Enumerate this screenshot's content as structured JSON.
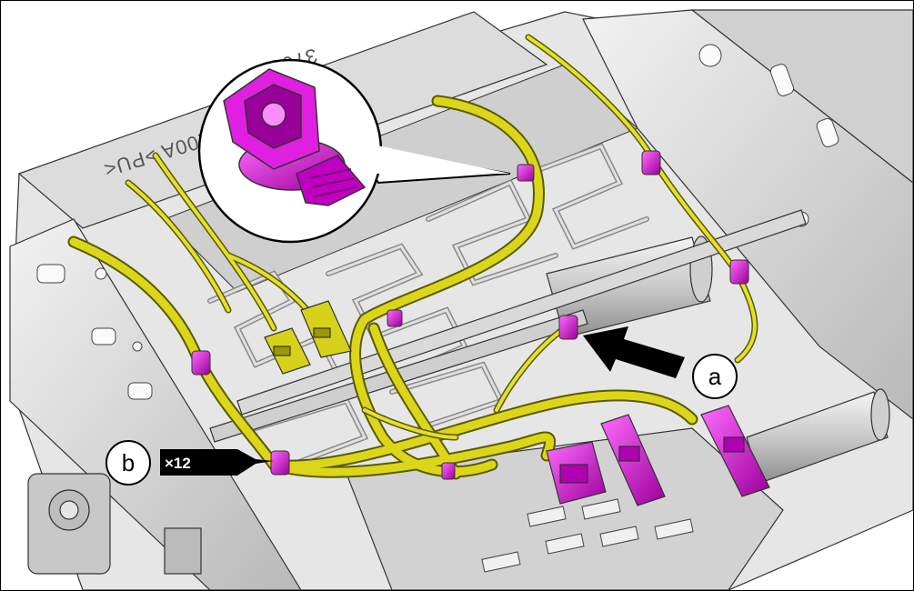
{
  "diagram": {
    "callouts": {
      "a": "a",
      "b": "b"
    },
    "quantity_label": "×12",
    "embossed_text": [
      "3706",
      "5100A >PU<"
    ],
    "colors": {
      "clip": "#d400d4",
      "clip_shadow": "#8a008a",
      "harness": "#d8d400",
      "harness_outline": "#5a5a00",
      "connector_yellow": "#d8d400",
      "metal": "#d6d6d6",
      "metal_dark": "#9a9a9a",
      "arrow": "#000000"
    },
    "icons": [
      "harness-clip-icon",
      "callout-arrow-icon",
      "magnifier-bubble-icon"
    ]
  }
}
